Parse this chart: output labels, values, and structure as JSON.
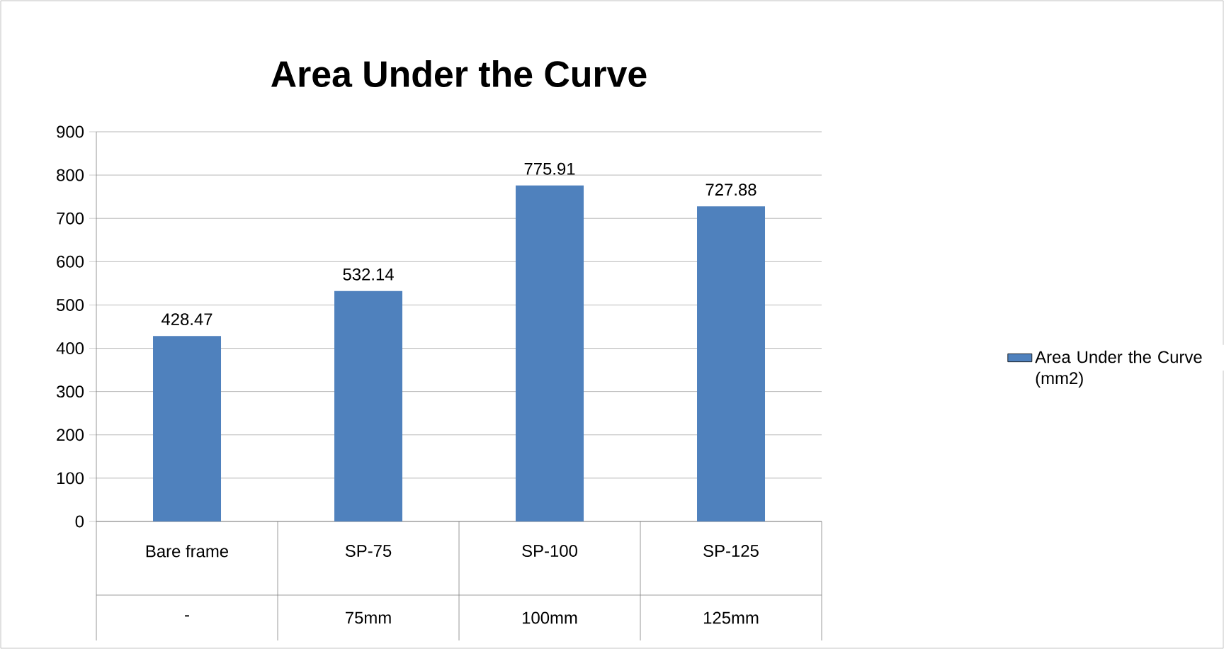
{
  "chart_data": {
    "type": "bar",
    "title": "Area Under the Curve",
    "categories": [
      "Bare frame",
      "SP-75",
      "SP-100",
      "SP-125"
    ],
    "annotations": [
      "-",
      "75mm",
      "100mm",
      "125mm"
    ],
    "series": [
      {
        "name": "Area Under the Curve (mm2)",
        "color": "#4f81bd",
        "values": [
          428.47,
          532.14,
          775.91,
          727.88
        ]
      }
    ],
    "ylim": [
      0,
      900
    ],
    "yticks": [
      0,
      100,
      200,
      300,
      400,
      500,
      600,
      700,
      800,
      900
    ],
    "grid": "y",
    "legend": "right",
    "data_labels": true
  }
}
